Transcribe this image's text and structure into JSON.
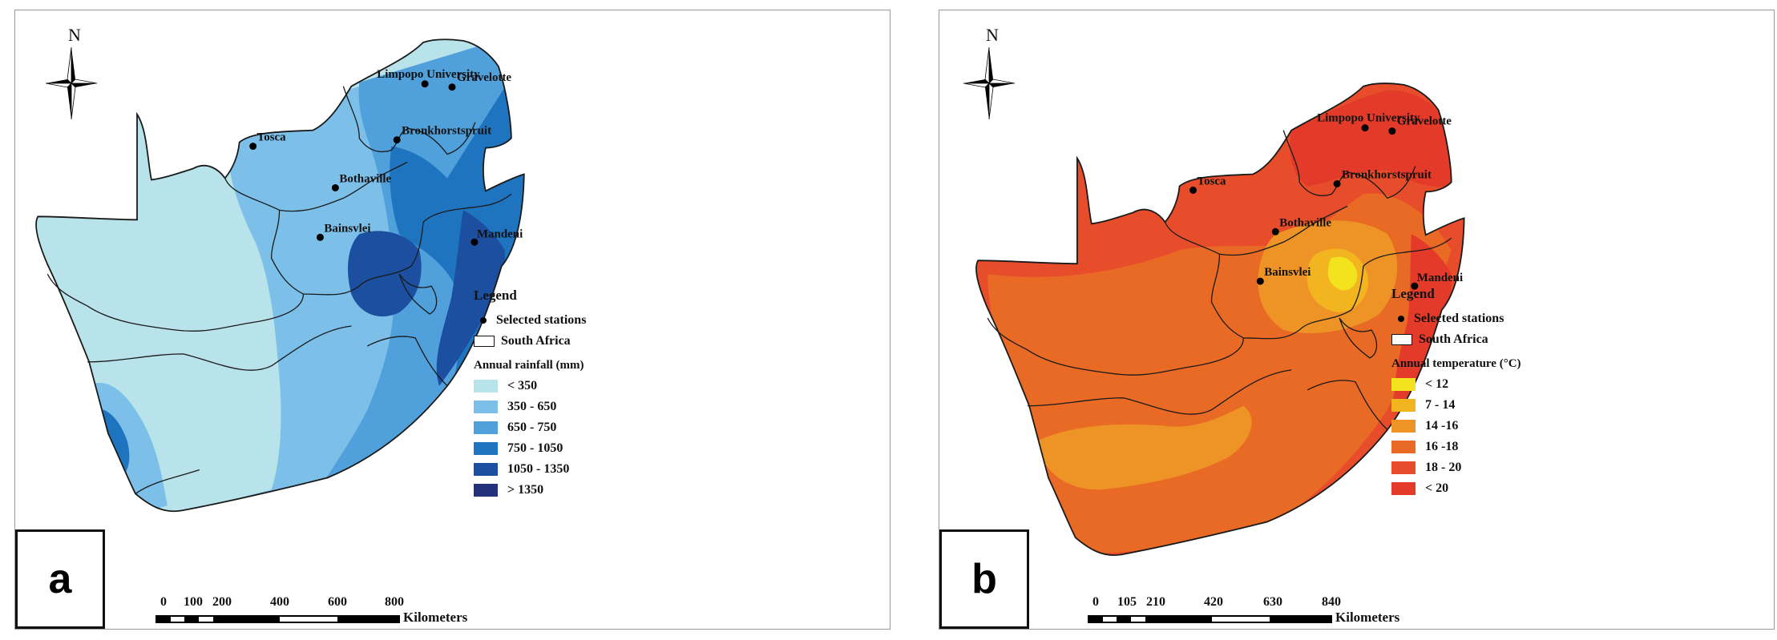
{
  "panels": [
    {
      "id": "a",
      "tag": "a",
      "north": "N",
      "stations": [
        {
          "name": "Limpopo University"
        },
        {
          "name": "Gravelotte"
        },
        {
          "name": "Tosca"
        },
        {
          "name": "Bronkhorstspruit"
        },
        {
          "name": "Bothaville"
        },
        {
          "name": "Bainsvlei"
        },
        {
          "name": "Mandeni"
        }
      ],
      "legend": {
        "title": "Legend",
        "stations_label": "Selected stations",
        "boundary_label": "South Africa",
        "variable_label": "Annual rainfall (mm)",
        "classes": [
          {
            "label": "< 350",
            "color": "#b9e3ea"
          },
          {
            "label": "350 - 650",
            "color": "#7cc0ea"
          },
          {
            "label": "650 - 750",
            "color": "#4fa0db"
          },
          {
            "label": "750 - 1050",
            "color": "#1f74bf"
          },
          {
            "label": "1050 - 1350",
            "color": "#1c4f9f"
          },
          {
            "label": "> 1350",
            "color": "#23307a"
          }
        ]
      },
      "scale": {
        "ticks": [
          "0",
          "100",
          "200",
          "400",
          "600",
          "800"
        ],
        "units": "Kilometers"
      }
    },
    {
      "id": "b",
      "tag": "b",
      "north": "N",
      "stations": [
        {
          "name": "Limpopo University"
        },
        {
          "name": "Gravelotte"
        },
        {
          "name": "Tosca"
        },
        {
          "name": "Bronkhorstspruit"
        },
        {
          "name": "Bothaville"
        },
        {
          "name": "Bainsvlei"
        },
        {
          "name": "Mandeni"
        }
      ],
      "legend": {
        "title": "Legend",
        "stations_label": "Selected stations",
        "boundary_label": "South Africa",
        "variable_label": "Annual temperature (°C)",
        "classes": [
          {
            "label": "< 12",
            "color": "#f3e21e"
          },
          {
            "label": "7 - 14",
            "color": "#f2b41f"
          },
          {
            "label": "14 -16",
            "color": "#ee9426"
          },
          {
            "label": "16 -18",
            "color": "#e96a24"
          },
          {
            "label": "18 - 20",
            "color": "#e74d2a"
          },
          {
            "label": "< 20",
            "color": "#e33a2a"
          }
        ]
      },
      "scale": {
        "ticks": [
          "0",
          "105",
          "210",
          "420",
          "630",
          "840"
        ],
        "units": "Kilometers"
      }
    }
  ]
}
